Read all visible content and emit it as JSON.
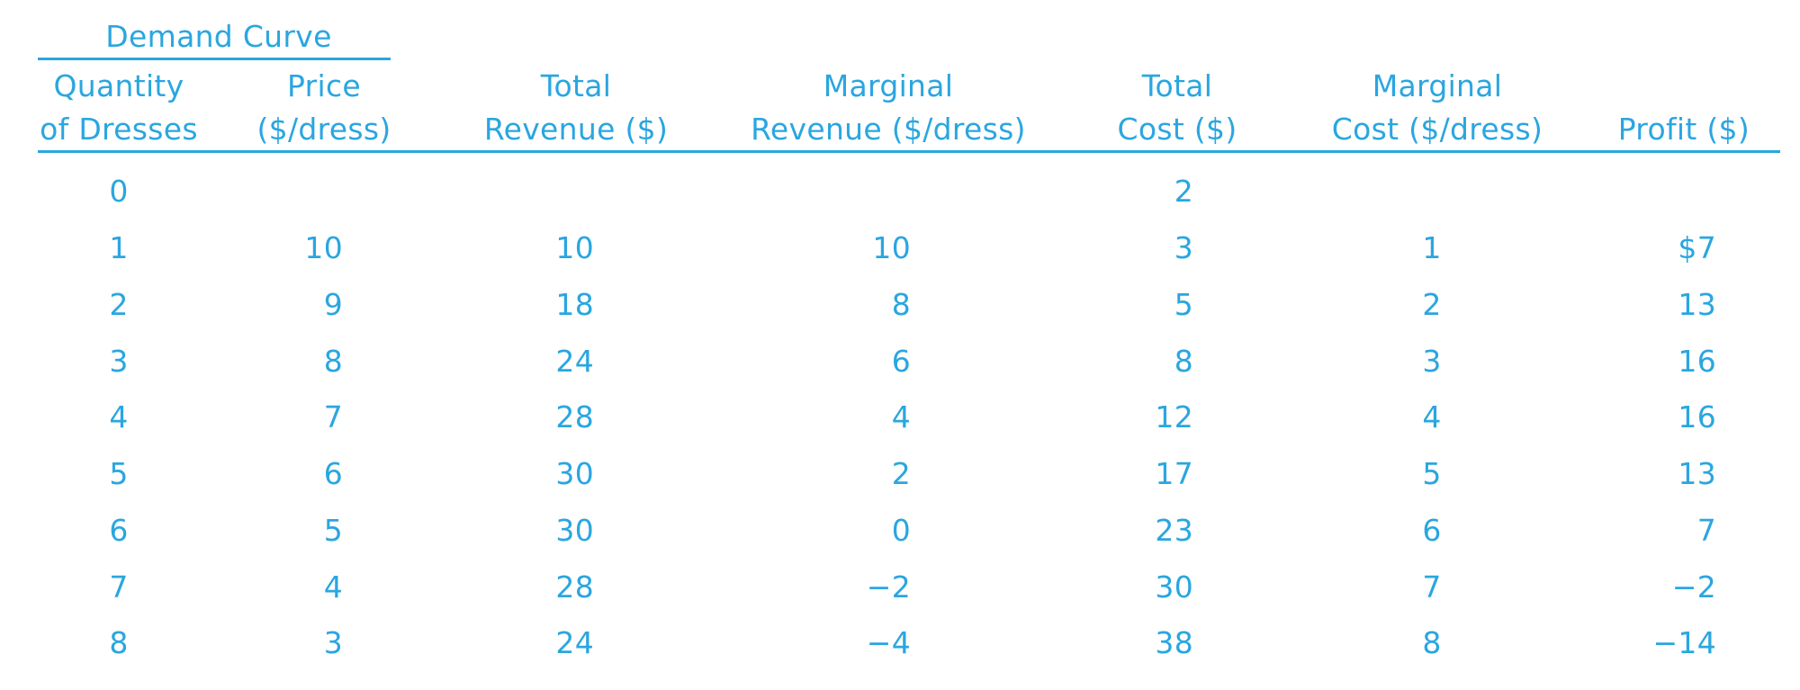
{
  "table": {
    "group_header": "Demand Curve",
    "headers": [
      {
        "line1": "Quantity",
        "line2": "of Dresses"
      },
      {
        "line1": "Price",
        "line2": "($/dress)"
      },
      {
        "line1": "Total",
        "line2": "Revenue ($)"
      },
      {
        "line1": "Marginal",
        "line2": "Revenue ($/dress)"
      },
      {
        "line1": "Total",
        "line2": "Cost ($)"
      },
      {
        "line1": "Marginal",
        "line2": "Cost ($/dress)"
      },
      {
        "line1": "",
        "line2": "Profit ($)"
      }
    ],
    "rows": [
      [
        "0",
        "",
        "",
        "",
        "2",
        "",
        ""
      ],
      [
        "1",
        "10",
        "10",
        "10",
        "3",
        "1",
        "$7"
      ],
      [
        "2",
        "9",
        "18",
        "8",
        "5",
        "2",
        "13"
      ],
      [
        "3",
        "8",
        "24",
        "6",
        "8",
        "3",
        "16"
      ],
      [
        "4",
        "7",
        "28",
        "4",
        "12",
        "4",
        "16"
      ],
      [
        "5",
        "6",
        "30",
        "2",
        "17",
        "5",
        "13"
      ],
      [
        "6",
        "5",
        "30",
        "0",
        "23",
        "6",
        "7"
      ],
      [
        "7",
        "4",
        "28",
        "−2",
        "30",
        "7",
        "−2"
      ],
      [
        "8",
        "3",
        "24",
        "−4",
        "38",
        "8",
        "−14"
      ]
    ]
  }
}
